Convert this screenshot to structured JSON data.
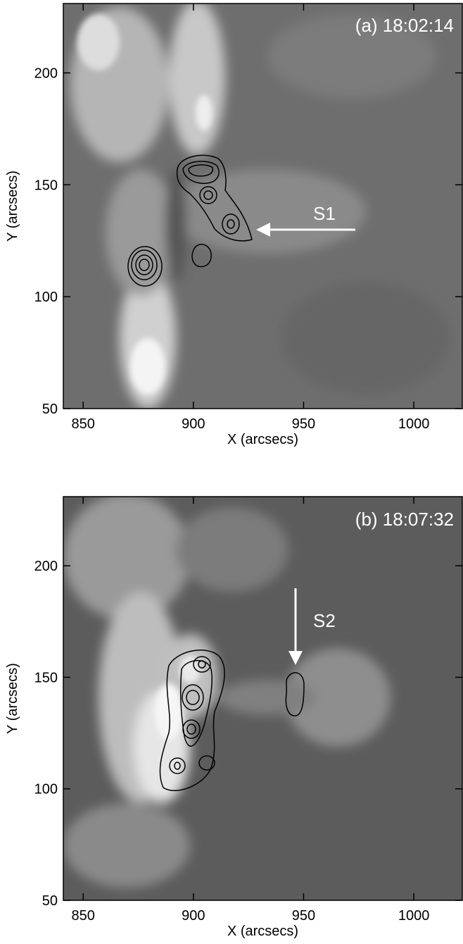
{
  "chart_data": [
    {
      "type": "image",
      "annotation": "(a) 18:02:14",
      "marker_label": "S1",
      "xlabel": "X (arcsecs)",
      "ylabel": "Y (arcsecs)",
      "xlim": [
        841,
        1022
      ],
      "ylim": [
        50,
        231
      ],
      "xticks": [
        850,
        900,
        950,
        1000
      ],
      "yticks": [
        50,
        100,
        150,
        200
      ]
    },
    {
      "type": "image",
      "annotation": "(b) 18:07:32",
      "marker_label": "S2",
      "xlabel": "X (arcsecs)",
      "ylabel": "Y (arcsecs)",
      "xlim": [
        841,
        1022
      ],
      "ylim": [
        50,
        231
      ],
      "xticks": [
        850,
        900,
        950,
        1000
      ],
      "yticks": [
        50,
        100,
        150,
        200
      ]
    }
  ]
}
